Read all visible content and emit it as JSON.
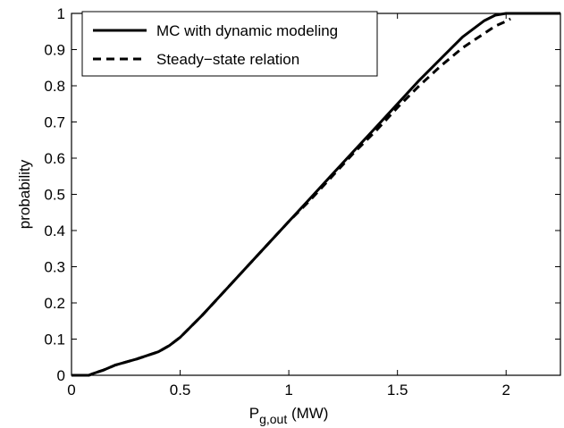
{
  "chart_data": {
    "type": "line",
    "title": "",
    "xlabel": "P",
    "xlabel_subscript": "g,out",
    "xlabel_unit": " (MW)",
    "ylabel": "probability",
    "xlim": [
      0,
      2.25
    ],
    "ylim": [
      0,
      1
    ],
    "grid": false,
    "legend_position": "top-left",
    "xticks": [
      0,
      0.5,
      1,
      1.5,
      2
    ],
    "xtick_labels": [
      "0",
      "0.5",
      "1",
      "1.5",
      "2"
    ],
    "yticks": [
      0,
      0.1,
      0.2,
      0.3,
      0.4,
      0.5,
      0.6,
      0.7,
      0.8,
      0.9,
      1
    ],
    "ytick_labels": [
      "0",
      "0.1",
      "0.2",
      "0.3",
      "0.4",
      "0.5",
      "0.6",
      "0.7",
      "0.8",
      "0.9",
      "1"
    ],
    "series": [
      {
        "name": "MC with dynamic modeling",
        "style": "solid",
        "color": "#000000",
        "x": [
          0,
          0.08,
          0.1,
          0.15,
          0.2,
          0.3,
          0.4,
          0.45,
          0.5,
          0.6,
          0.7,
          0.8,
          0.9,
          1.0,
          1.1,
          1.2,
          1.3,
          1.4,
          1.5,
          1.6,
          1.7,
          1.8,
          1.9,
          1.95,
          2.0,
          2.05,
          2.25
        ],
        "y": [
          0,
          0,
          0.005,
          0.015,
          0.028,
          0.045,
          0.065,
          0.082,
          0.105,
          0.165,
          0.23,
          0.295,
          0.36,
          0.425,
          0.49,
          0.555,
          0.62,
          0.685,
          0.75,
          0.815,
          0.875,
          0.935,
          0.98,
          0.995,
          1.0,
          1.0,
          1.0
        ]
      },
      {
        "name": "Steady−state relation",
        "style": "dashed",
        "color": "#000000",
        "x": [
          0,
          0.08,
          0.1,
          0.15,
          0.2,
          0.3,
          0.4,
          0.45,
          0.5,
          0.6,
          0.7,
          0.8,
          0.9,
          1.0,
          1.1,
          1.2,
          1.3,
          1.4,
          1.5,
          1.6,
          1.7,
          1.8,
          1.9,
          1.95,
          2.0,
          2.02
        ],
        "y": [
          0,
          0,
          0.005,
          0.015,
          0.028,
          0.045,
          0.065,
          0.082,
          0.105,
          0.165,
          0.23,
          0.295,
          0.36,
          0.425,
          0.485,
          0.55,
          0.615,
          0.675,
          0.74,
          0.8,
          0.855,
          0.905,
          0.945,
          0.965,
          0.978,
          0.985
        ]
      }
    ]
  }
}
